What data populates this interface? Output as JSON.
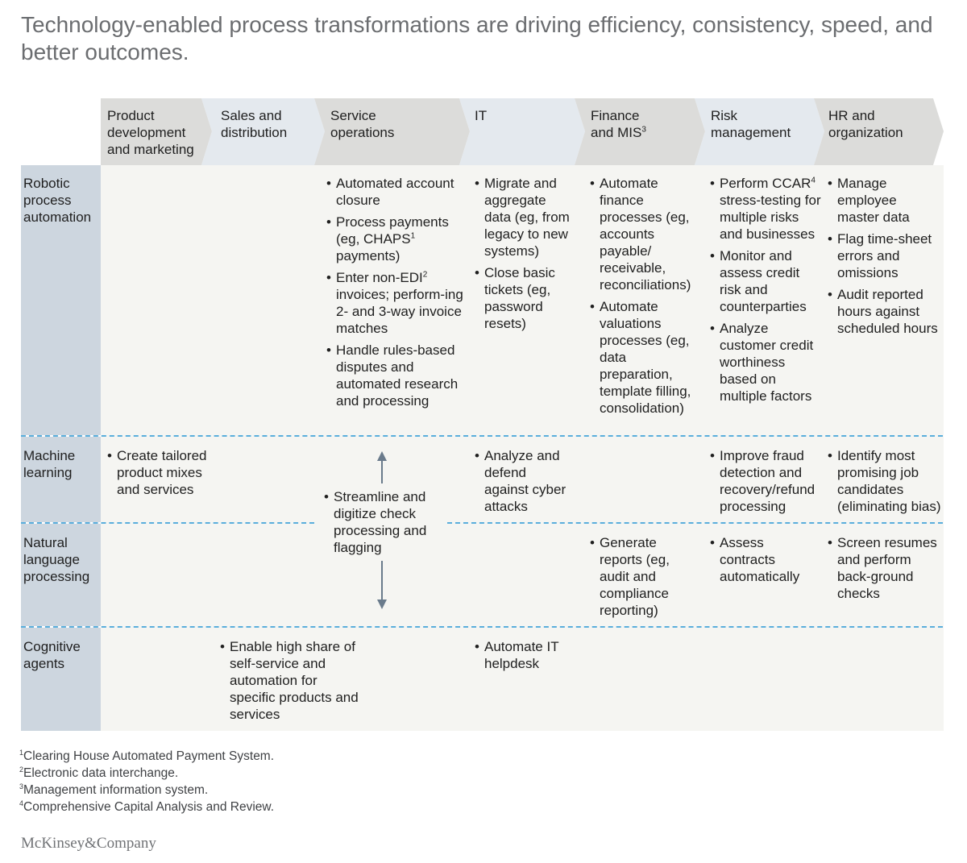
{
  "title": "Technology-enabled process transformations are driving efficiency, consistency, speed, and better outcomes.",
  "columns": [
    {
      "label": "Product development and marketing",
      "sup": ""
    },
    {
      "label": "Sales and distribution",
      "sup": ""
    },
    {
      "label": "Service operations",
      "sup": ""
    },
    {
      "label": "IT",
      "sup": ""
    },
    {
      "label": "Finance and MIS",
      "sup": "3"
    },
    {
      "label": "Risk management",
      "sup": ""
    },
    {
      "label": "HR and organization",
      "sup": ""
    }
  ],
  "rows": [
    {
      "label": "Robotic process automation"
    },
    {
      "label": "Machine learning"
    },
    {
      "label": "Natural language processing"
    },
    {
      "label": "Cognitive agents"
    }
  ],
  "cells": {
    "rpa_service": [
      {
        "text": "Automated account closure",
        "sup": ""
      },
      {
        "text": "Process payments (eg, CHAPS",
        "sup": "1",
        "after": " payments)"
      },
      {
        "text": "Enter non-EDI",
        "sup": "2",
        "after": " invoices; perform-ing 2- and 3-way invoice matches"
      },
      {
        "text": "Handle rules-based disputes and automated research and processing",
        "sup": ""
      }
    ],
    "rpa_it": [
      {
        "text": "Migrate and aggregate data (eg, from legacy to new systems)",
        "sup": ""
      },
      {
        "text": "Close basic tickets (eg, password resets)",
        "sup": ""
      }
    ],
    "rpa_finance": [
      {
        "text": "Automate finance processes (eg, accounts payable/ receivable, reconciliations)",
        "sup": ""
      },
      {
        "text": "Automate valuations processes (eg, data preparation, template filling, consolidation)",
        "sup": ""
      }
    ],
    "rpa_risk": [
      {
        "text": "Perform CCAR",
        "sup": "4",
        "after": " stress-testing for multiple risks and businesses"
      },
      {
        "text": "Monitor and assess credit risk and counterparties",
        "sup": ""
      },
      {
        "text": "Analyze customer credit worthiness based on multiple factors",
        "sup": ""
      }
    ],
    "rpa_hr": [
      {
        "text": "Manage employee master data",
        "sup": ""
      },
      {
        "text": "Flag time-sheet errors and omissions",
        "sup": ""
      },
      {
        "text": "Audit reported hours against scheduled hours",
        "sup": ""
      }
    ],
    "ml_product": [
      {
        "text": "Create tailored product mixes and services",
        "sup": ""
      }
    ],
    "ml_nlp_service": [
      {
        "text": "Streamline and digitize check processing and flagging",
        "sup": ""
      }
    ],
    "ml_it": [
      {
        "text": "Analyze and defend against cyber attacks",
        "sup": ""
      }
    ],
    "ml_risk": [
      {
        "text": "Improve fraud detection and recovery/refund processing",
        "sup": ""
      }
    ],
    "ml_hr": [
      {
        "text": "Identify most promising job candidates (eliminating bias)",
        "sup": ""
      }
    ],
    "nlp_finance": [
      {
        "text": "Generate reports (eg, audit and compliance reporting)",
        "sup": ""
      }
    ],
    "nlp_risk": [
      {
        "text": "Assess contracts automatically",
        "sup": ""
      }
    ],
    "nlp_hr": [
      {
        "text": "Screen resumes and perform back-ground checks",
        "sup": ""
      }
    ],
    "ca_sales": [
      {
        "text": "Enable high share of self-service and automation for specific products and services",
        "sup": ""
      }
    ],
    "ca_it": [
      {
        "text": "Automate IT helpdesk",
        "sup": ""
      }
    ]
  },
  "footnotes": [
    {
      "num": "1",
      "text": "Clearing House Automated Payment System."
    },
    {
      "num": "2",
      "text": "Electronic data interchange."
    },
    {
      "num": "3",
      "text": "Management information system."
    },
    {
      "num": "4",
      "text": "Comprehensive Capital Analysis and Review."
    }
  ],
  "brand": "McKinsey&Company",
  "colors": {
    "chevron_gray": "#dcdcda",
    "chevron_light": "#e4e9ee",
    "row_label_bg": "#cdd6df",
    "body_bg": "#f5f5f2",
    "divider": "#5aaedc",
    "arrow": "#6a7b8c"
  }
}
